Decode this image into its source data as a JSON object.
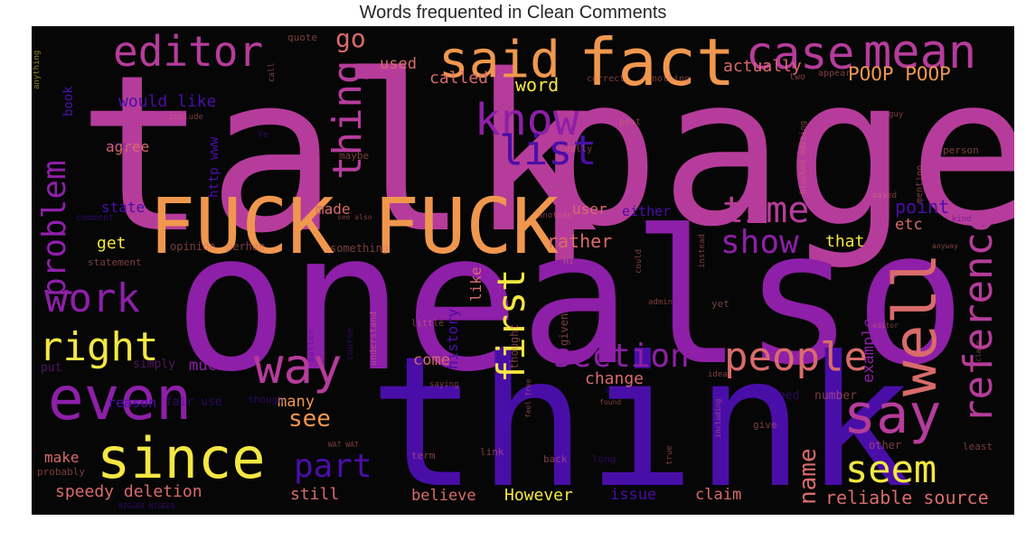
{
  "title": "Words frequented in Clean Comments",
  "words": {
    "talk": "talk",
    "page": "page",
    "one": "one",
    "also": "also",
    "think": "think",
    "fuck1": "FUCK",
    "fuck2": "FUCK",
    "fact": "fact",
    "said": "said",
    "case": "case",
    "mean": "mean",
    "editor": "editor",
    "know": "know",
    "list": "list",
    "thing": "thing",
    "go": "go",
    "time": "time",
    "show": "show",
    "work": "work",
    "right": "right",
    "even": "even",
    "since": "since",
    "way": "way",
    "people": "people",
    "well": "well",
    "say": "say",
    "reference": "reference",
    "seem": "seem",
    "first": "first",
    "section": "section",
    "part": "part",
    "see": "see",
    "problem": "problem",
    "used": "used",
    "would_like": "would like",
    "called": "called",
    "actually": "actually",
    "poop": "POOP POOP",
    "word": "word",
    "agree": "agree",
    "http_www": "http www",
    "state": "state",
    "made": "made",
    "get": "get",
    "opinion": "opinion",
    "perhap": "perhap",
    "something": "something",
    "statement": "statement",
    "user": "user",
    "either": "either",
    "point": "point",
    "etc": "etc",
    "rather": "rather",
    "that": "that",
    "example": "example",
    "history": "history",
    "like": "like",
    "much": "much",
    "change": "change",
    "come": "come",
    "many": "many",
    "reason": "reason",
    "fair_use": "fair use",
    "make": "make",
    "speedy_deletion": "speedy deletion",
    "still": "still",
    "believe": "believe",
    "however": "However",
    "issue": "issue",
    "claim": "claim",
    "name": "name",
    "reliable_source": "reliable source",
    "book": "book",
    "quote": "quote",
    "correct": "correct",
    "nothing": "nothing",
    "two": "two",
    "appear": "appear",
    "post": "post",
    "guy": "guy",
    "include": "include",
    "site": "site",
    "maybe": "maybe",
    "really": "really",
    "comment": "comment",
    "another": "another",
    "person": "person",
    "mention": "mention",
    "based": "based",
    "kind": "kind",
    "anyway": "anyway",
    "instead": "instead",
    "could": "could",
    "admin": "admin",
    "yet": "yet",
    "little": "little",
    "given": "given",
    "understand": "understand",
    "course": "course",
    "matter": "matter",
    "thought": "thought",
    "put": "put",
    "simply": "simply",
    "though": "though",
    "view": "view",
    "saying": "saying",
    "idea": "idea",
    "need": "need",
    "number": "number",
    "found": "found",
    "support": "support",
    "term": "term",
    "link": "link",
    "back": "back",
    "long": "long",
    "true": "true",
    "give": "give",
    "other": "other",
    "least": "least",
    "probably": "probably",
    "blocked_editing": "blocked editing",
    "feel_free": "feel free",
    "anything": "anything",
    "call": "call",
    "ye": "Ye",
    "hi": "Hi",
    "u": "u",
    "including": "including",
    "nigger_nigger": "NIGGER NIGGER",
    "wat_wat": "WAT WAT",
    "see_also": "see also",
    "editor_small": "editor",
    "claim_small": "claim"
  }
}
